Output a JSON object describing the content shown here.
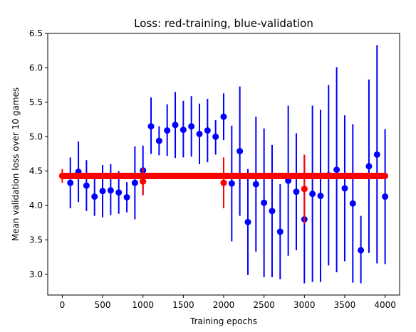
{
  "chart_data": {
    "type": "scatter",
    "title": "Loss: red-training, blue-validation",
    "xlabel": "Training epochs",
    "ylabel": "Mean validation loss over 10 games",
    "xlim": [
      -180,
      4180
    ],
    "ylim": [
      2.7,
      6.5
    ],
    "xticks": [
      0,
      500,
      1000,
      1500,
      2000,
      2500,
      3000,
      3500,
      4000
    ],
    "yticks": [
      3.0,
      3.5,
      4.0,
      4.5,
      5.0,
      5.5,
      6.0,
      6.5
    ],
    "xtick_labels": [
      "0",
      "500",
      "1000",
      "1500",
      "2000",
      "2500",
      "3000",
      "3500",
      "4000"
    ],
    "ytick_labels": [
      "3.0",
      "3.5",
      "4.0",
      "4.5",
      "5.0",
      "5.5",
      "6.0",
      "6.5"
    ],
    "colors": {
      "validation": "#0000ff",
      "training": "#ff0000"
    },
    "series": [
      {
        "name": "validation",
        "color": "#0000ff",
        "points": [
          {
            "x": 100,
            "y": 4.33,
            "lo": 3.96,
            "hi": 4.7
          },
          {
            "x": 200,
            "y": 4.49,
            "lo": 4.05,
            "hi": 4.93
          },
          {
            "x": 300,
            "y": 4.29,
            "lo": 3.92,
            "hi": 4.66
          },
          {
            "x": 400,
            "y": 4.13,
            "lo": 3.85,
            "hi": 4.45
          },
          {
            "x": 500,
            "y": 4.21,
            "lo": 3.83,
            "hi": 4.59
          },
          {
            "x": 600,
            "y": 4.22,
            "lo": 3.86,
            "hi": 4.6
          },
          {
            "x": 700,
            "y": 4.19,
            "lo": 3.88,
            "hi": 4.5
          },
          {
            "x": 800,
            "y": 4.12,
            "lo": 3.9,
            "hi": 4.34
          },
          {
            "x": 900,
            "y": 4.33,
            "lo": 3.8,
            "hi": 4.86
          },
          {
            "x": 1000,
            "y": 4.51,
            "lo": 4.15,
            "hi": 4.87
          },
          {
            "x": 1100,
            "y": 5.15,
            "lo": 4.75,
            "hi": 5.57
          },
          {
            "x": 1200,
            "y": 4.94,
            "lo": 4.73,
            "hi": 5.15
          },
          {
            "x": 1300,
            "y": 5.09,
            "lo": 4.72,
            "hi": 5.47
          },
          {
            "x": 1400,
            "y": 5.17,
            "lo": 4.69,
            "hi": 5.65
          },
          {
            "x": 1500,
            "y": 5.1,
            "lo": 4.7,
            "hi": 5.52
          },
          {
            "x": 1600,
            "y": 5.15,
            "lo": 4.71,
            "hi": 5.59
          },
          {
            "x": 1700,
            "y": 5.04,
            "lo": 4.6,
            "hi": 5.48
          },
          {
            "x": 1800,
            "y": 5.09,
            "lo": 4.63,
            "hi": 5.55
          },
          {
            "x": 1900,
            "y": 5.0,
            "lo": 4.74,
            "hi": 5.24
          },
          {
            "x": 2000,
            "y": 5.29,
            "lo": 4.95,
            "hi": 5.63
          },
          {
            "x": 2100,
            "y": 4.32,
            "lo": 3.48,
            "hi": 5.16
          },
          {
            "x": 2200,
            "y": 4.79,
            "lo": 3.85,
            "hi": 5.73
          },
          {
            "x": 2300,
            "y": 3.76,
            "lo": 2.99,
            "hi": 4.53
          },
          {
            "x": 2400,
            "y": 4.31,
            "lo": 3.33,
            "hi": 5.29
          },
          {
            "x": 2500,
            "y": 4.04,
            "lo": 2.96,
            "hi": 5.12
          },
          {
            "x": 2600,
            "y": 3.92,
            "lo": 2.96,
            "hi": 4.88
          },
          {
            "x": 2700,
            "y": 3.62,
            "lo": 2.93,
            "hi": 4.31
          },
          {
            "x": 2800,
            "y": 4.36,
            "lo": 3.27,
            "hi": 5.45
          },
          {
            "x": 2900,
            "y": 4.2,
            "lo": 3.35,
            "hi": 5.05
          },
          {
            "x": 3000,
            "y": 3.8,
            "lo": 2.87,
            "hi": 4.73
          },
          {
            "x": 3100,
            "y": 4.17,
            "lo": 2.89,
            "hi": 5.45
          },
          {
            "x": 3200,
            "y": 4.14,
            "lo": 2.89,
            "hi": 5.39
          },
          {
            "x": 3300,
            "y": 4.44,
            "lo": 3.13,
            "hi": 5.75
          },
          {
            "x": 3400,
            "y": 4.52,
            "lo": 3.03,
            "hi": 6.01
          },
          {
            "x": 3500,
            "y": 4.25,
            "lo": 3.19,
            "hi": 5.31
          },
          {
            "x": 3600,
            "y": 4.03,
            "lo": 2.88,
            "hi": 5.18
          },
          {
            "x": 3700,
            "y": 3.35,
            "lo": 2.87,
            "hi": 3.85
          },
          {
            "x": 3800,
            "y": 4.57,
            "lo": 3.31,
            "hi": 5.83
          },
          {
            "x": 3900,
            "y": 4.74,
            "lo": 3.16,
            "hi": 6.33
          },
          {
            "x": 4000,
            "y": 4.13,
            "lo": 3.15,
            "hi": 5.11
          }
        ]
      },
      {
        "name": "training",
        "color": "#ff0000",
        "x_start": 0,
        "x_end": 4000,
        "x_step": 10,
        "baseline": 4.43,
        "exceptions": [
          {
            "x": 0,
            "y": 4.43,
            "lo": 4.33,
            "hi": 4.53
          },
          {
            "x": 1000,
            "y": 4.35,
            "lo": 4.15,
            "hi": 4.55
          },
          {
            "x": 2000,
            "y": 4.33,
            "lo": 3.96,
            "hi": 4.7
          },
          {
            "x": 3000,
            "y": 4.24,
            "lo": 3.74,
            "hi": 4.74
          }
        ]
      }
    ]
  }
}
